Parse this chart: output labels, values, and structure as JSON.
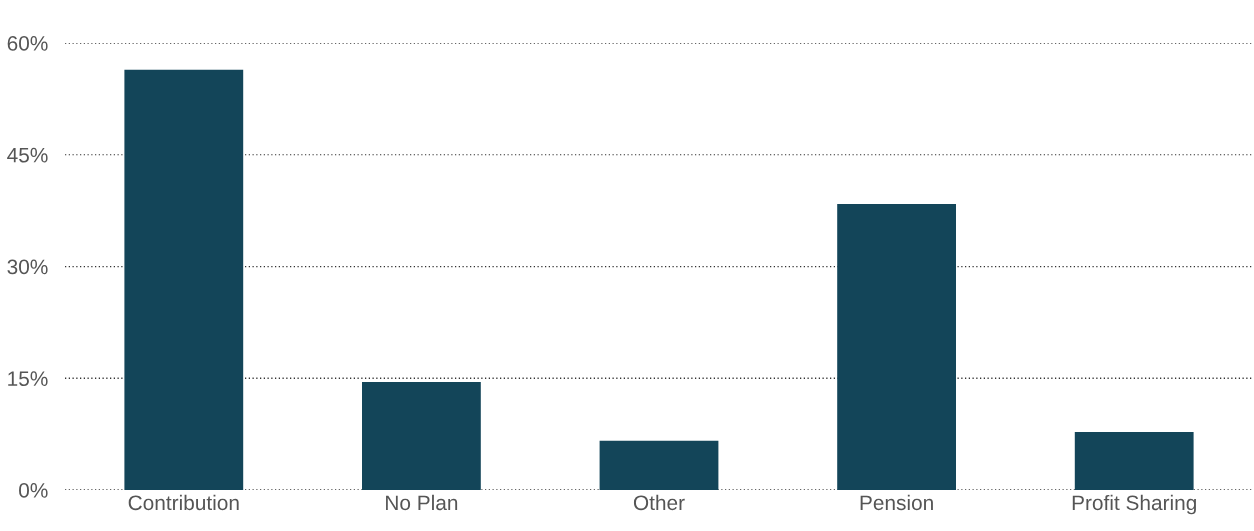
{
  "chart_data": {
    "type": "bar",
    "categories": [
      "Contribution",
      "No Plan",
      "Other",
      "Pension",
      "Profit Sharing"
    ],
    "values": [
      56.4,
      14.5,
      6.6,
      38.4,
      7.8
    ],
    "color": "#134559",
    "ylim": [
      0,
      60
    ],
    "yticks": [
      {
        "value": 0,
        "label": "0%"
      },
      {
        "value": 15,
        "label": "15%"
      },
      {
        "value": 30,
        "label": "30%"
      },
      {
        "value": 45,
        "label": "45%"
      },
      {
        "value": 60,
        "label": "60%"
      }
    ],
    "grid": "y",
    "legend": false
  }
}
